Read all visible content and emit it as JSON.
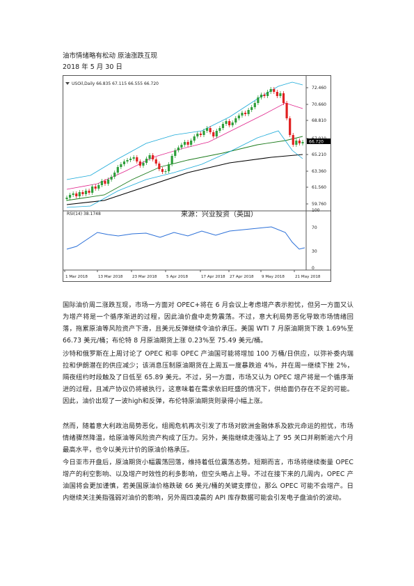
{
  "doc": {
    "title": "油市情绪略有松动 原油涨跌互现",
    "date": "2018 年 5 月 30 日"
  },
  "chart": {
    "header": "USOil,Daily  66.835 67.115 66.555 66.720",
    "price_labels": [
      "72.460",
      "70.660",
      "68.810",
      "67.010",
      "65.210",
      "63.360",
      "61.560",
      "59.760"
    ],
    "current_price": "66.720",
    "watermark": "来源：兴业投资（英国）",
    "rsi_label": "RSI(14) 38.1748",
    "rsi_levels": [
      "100",
      "70",
      "30",
      "0"
    ],
    "date_labels": [
      "1 Mar 2018",
      "13 Mar 2018",
      "23 Mar 2018",
      "5 Apr 2018",
      "17 Apr 2018",
      "27 Apr 2018",
      "9 May 2018",
      "21 May 2018"
    ],
    "colors": {
      "up": "#2e9e3a",
      "down": "#e02020",
      "sma_slow": "#000000",
      "sma_mid": "#1a7a1a",
      "bb": "#16a8d8",
      "ema_fast": "#e0208a",
      "rsi": "#2a6fd8"
    }
  },
  "paragraphs": [
    "国际油价周二涨跌互现，市场一方面对 OPEC+将在 6 月会议上考虑增产表示担忧，但另一方面又认为增产将是一个循序渐进的过程，因此油价盘中走势震荡。不过，意大利局势恶化导致市场情绪回落，拖累原油等风险资产下滑，且美元反弹继续令油价承压。美国 WTI 7 月原油期货下跌 1.69%至 66.73 美元/桶；布伦特 8 月原油期货上涨 0.23%至 75.49 美元/桶。",
    "沙特和俄罗斯在上周讨论了 OPEC 和非 OPEC 产油国可能将增加 100 万桶/日供应，以弥补委内瑞拉和伊朗潜在的供应减少；该消息压制原油期货在上周五一度暴跌逾 4%，并在周一继续下挫 2%，隔夜纽约时段触及了日低至 65.89 美元。不过，另一方面，市场又认为 OPEC 增产将是一个循序渐进的过程，且减产协议仍将被执行，这意味着在需求依旧旺盛的情况下，供给面仍存在不足的可能。因此，油价出现了一波high和反弹，布伦特原油期货则录得小幅上涨。",
    "然而，随着意大利政治局势恶化，组阁危机再次引发了市场对欧洲金融体系及欧元命运的担忧，市场情绪骤然降温，给原油等风险资产构成了压力。另外，美指继续走强站上了 95 关口并刷新逾六个月最高水平，也令以美元计价的原油价格承压。",
    "今日亚市开盘后，原油期货小幅震荡回落，维持着低位震荡态势。短期而言，市场将继续衡量 OPEC 增产的利空影响、以及增产时效性的利多影响，但空头略占上导。不过在接下来的几周内，OPEC 产油国将会更加谨慎，若美国原油价格跌破 66 美元/桶的关键支撑位，那么 OPEC 可能不会增产。日内继续关注美指强弱对油价的影响，另外周四凌晨的 API 库存数据可能会引发电子盘油价的波动。"
  ]
}
